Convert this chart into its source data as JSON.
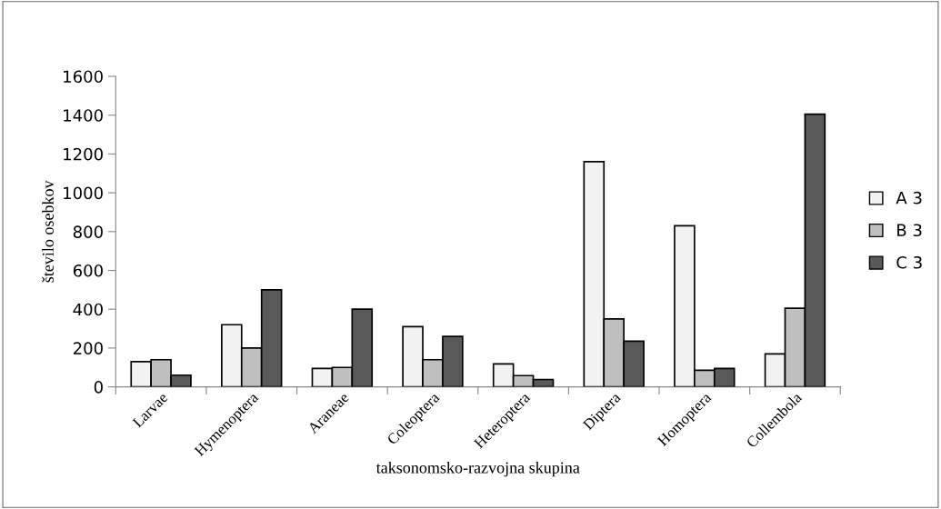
{
  "chart_data": {
    "type": "bar",
    "xlabel": "taksonomsko-razvojna skupina",
    "ylabel": "število osebkov",
    "categories": [
      "Larvae",
      "Hymenoptera",
      "Araneae",
      "Coleoptera",
      "Heteroptera",
      "Diptera",
      "Homoptera",
      "Collembola"
    ],
    "series": [
      {
        "name": "A 3",
        "color": "#f2f2f2",
        "values": [
          130,
          320,
          95,
          310,
          118,
          1160,
          830,
          170
        ]
      },
      {
        "name": "B 3",
        "color": "#bfbfbf",
        "values": [
          140,
          200,
          100,
          140,
          58,
          350,
          85,
          405
        ]
      },
      {
        "name": "C 3",
        "color": "#595959",
        "values": [
          60,
          500,
          400,
          260,
          38,
          235,
          95,
          1405
        ]
      }
    ],
    "ylim": [
      0,
      1600
    ],
    "yticks": [
      0,
      200,
      400,
      600,
      800,
      1000,
      1200,
      1400,
      1600
    ],
    "grid": false,
    "legend": "right"
  }
}
